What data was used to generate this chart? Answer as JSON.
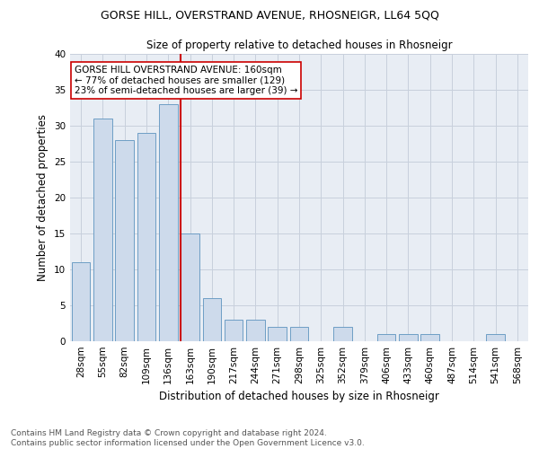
{
  "title1": "GORSE HILL, OVERSTRAND AVENUE, RHOSNEIGR, LL64 5QQ",
  "title2": "Size of property relative to detached houses in Rhosneigr",
  "xlabel": "Distribution of detached houses by size in Rhosneigr",
  "ylabel": "Number of detached properties",
  "categories": [
    "28sqm",
    "55sqm",
    "82sqm",
    "109sqm",
    "136sqm",
    "163sqm",
    "190sqm",
    "217sqm",
    "244sqm",
    "271sqm",
    "298sqm",
    "325sqm",
    "352sqm",
    "379sqm",
    "406sqm",
    "433sqm",
    "460sqm",
    "487sqm",
    "514sqm",
    "541sqm",
    "568sqm"
  ],
  "values": [
    11,
    31,
    28,
    29,
    33,
    15,
    6,
    3,
    3,
    2,
    2,
    0,
    2,
    0,
    1,
    1,
    1,
    0,
    0,
    1,
    0
  ],
  "bar_color": "#cddaeb",
  "bar_edge_color": "#6e9ec5",
  "vline_x_index": 5,
  "vline_color": "#cc0000",
  "annotation_text": "GORSE HILL OVERSTRAND AVENUE: 160sqm\n← 77% of detached houses are smaller (129)\n23% of semi-detached houses are larger (39) →",
  "annotation_box_color": "#ffffff",
  "annotation_box_edge": "#cc0000",
  "footer1": "Contains HM Land Registry data © Crown copyright and database right 2024.",
  "footer2": "Contains public sector information licensed under the Open Government Licence v3.0.",
  "ylim": [
    0,
    40
  ],
  "yticks": [
    0,
    5,
    10,
    15,
    20,
    25,
    30,
    35,
    40
  ],
  "grid_color": "#c8d0dc",
  "bg_color": "#e8edf4",
  "title1_fontsize": 9,
  "title2_fontsize": 8.5,
  "ylabel_fontsize": 8.5,
  "xlabel_fontsize": 8.5,
  "tick_fontsize": 7.5,
  "ann_fontsize": 7.5,
  "footer_fontsize": 6.5
}
